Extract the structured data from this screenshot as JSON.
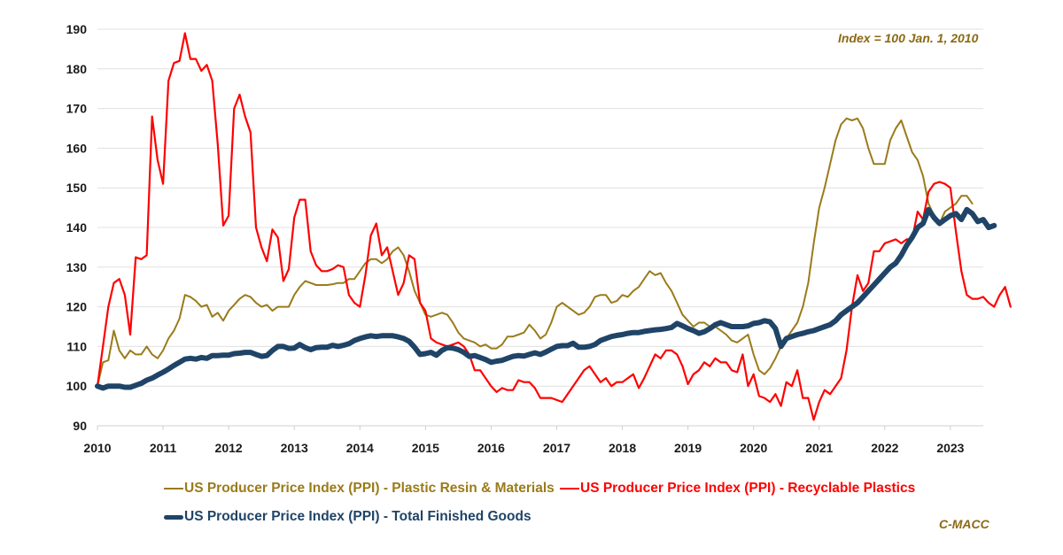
{
  "chart_data": {
    "type": "line",
    "title": "",
    "xlabel": "",
    "ylabel": "",
    "annotation": "Index = 100 Jan. 1, 2010",
    "source": "C-MACC",
    "ylim": [
      90,
      190
    ],
    "yticks": [
      90,
      100,
      110,
      120,
      130,
      140,
      150,
      160,
      170,
      180,
      190
    ],
    "xlim": [
      2010,
      2023.5
    ],
    "xticks": [
      "2010",
      "2011",
      "2012",
      "2013",
      "2014",
      "2015",
      "2016",
      "2017",
      "2018",
      "2019",
      "2020",
      "2021",
      "2022",
      "2023"
    ],
    "grid": true,
    "legend_position": "bottom",
    "x_start": "2010-01",
    "x_step": "monthly",
    "series": [
      {
        "name": "US Producer Price Index (PPI) - Plastic Resin & Materials",
        "color": "#9a7b1a",
        "style": "thin",
        "values": [
          100,
          106,
          106.5,
          114,
          109,
          107,
          109,
          108,
          108,
          110,
          108,
          107,
          109,
          112,
          114,
          117,
          123,
          122.5,
          121.5,
          120,
          120.5,
          117.5,
          118.5,
          116.5,
          119,
          120.5,
          122,
          123,
          122.5,
          121,
          120,
          120.5,
          119,
          120,
          120,
          120,
          123,
          125,
          126.5,
          126,
          125.5,
          125.5,
          125.5,
          125.7,
          126,
          126,
          127,
          127,
          129,
          131,
          132,
          132,
          131,
          132,
          134,
          135,
          133,
          129,
          124,
          121,
          118,
          117.5,
          118,
          118.5,
          118,
          116,
          113.5,
          112,
          111.5,
          111,
          110,
          110.5,
          109.5,
          109.5,
          110.5,
          112.5,
          112.5,
          113,
          113.5,
          115.5,
          114,
          112,
          113,
          116,
          120,
          121,
          120,
          119,
          118,
          118.5,
          120,
          122.5,
          123,
          123,
          121,
          121.5,
          123,
          122.5,
          124,
          125,
          127,
          129,
          128,
          128.5,
          126,
          124,
          121,
          118,
          116.5,
          115,
          116,
          116,
          115,
          115,
          114,
          113,
          111.5,
          111,
          112,
          113,
          108,
          104,
          103,
          104.5,
          107,
          110,
          112,
          114,
          116,
          120,
          126,
          136,
          145,
          150,
          156,
          162,
          166,
          167.5,
          167,
          167.5,
          165,
          160,
          156,
          156,
          156,
          162,
          165,
          167,
          163,
          159,
          157,
          153,
          146,
          143,
          141,
          144,
          145,
          146,
          148,
          148,
          146
        ]
      },
      {
        "name": "US Producer Price Index (PPI) - Recyclable Plastics",
        "color": "#ff0000",
        "style": "medium",
        "values": [
          100,
          110,
          120,
          126,
          127,
          123,
          113,
          132.5,
          132,
          133,
          168,
          157,
          151,
          177,
          181.5,
          182,
          189,
          182.5,
          182.5,
          179.5,
          181,
          177,
          161,
          140.5,
          143,
          170,
          173.5,
          168,
          164,
          140,
          135,
          131.5,
          139.5,
          137.5,
          126.5,
          129.5,
          142.5,
          147,
          147,
          134,
          130.5,
          129,
          129,
          129.5,
          130.5,
          130,
          123,
          121,
          120,
          128,
          138,
          141,
          133,
          135,
          129,
          123,
          126,
          133,
          132,
          121,
          119,
          112,
          111,
          110.5,
          110,
          110.5,
          111,
          110,
          108,
          104,
          104,
          102,
          100,
          98.5,
          99.5,
          99,
          99,
          101.5,
          101,
          101,
          99.5,
          97,
          97,
          97,
          96.5,
          96,
          98,
          100,
          102,
          104,
          105,
          103,
          101,
          102,
          100,
          101,
          101,
          102,
          103,
          99.5,
          102,
          105,
          108,
          107,
          109,
          109,
          108,
          105,
          100.5,
          103,
          104,
          106,
          105,
          107,
          106,
          106,
          104,
          103.5,
          108,
          100,
          103,
          97.5,
          97,
          96,
          98,
          95,
          101,
          100,
          104,
          97,
          97,
          91.5,
          96,
          99,
          98,
          100,
          102,
          109,
          120,
          128,
          124,
          126,
          134,
          134,
          136,
          136.5,
          137,
          136,
          137,
          137,
          144,
          142,
          149,
          151,
          151.5,
          151,
          150,
          139,
          129,
          123,
          122,
          122,
          122.5,
          121,
          120,
          123,
          125,
          120
        ]
      },
      {
        "name": "US Producer Price Index (PPI) - Total Finished Goods",
        "color": "#1f4467",
        "style": "thick",
        "values": [
          100,
          99.5,
          100,
          100,
          100,
          99.7,
          99.7,
          100.2,
          100.7,
          101.5,
          102,
          102.8,
          103.5,
          104.3,
          105.2,
          106,
          106.8,
          107,
          106.8,
          107.2,
          107,
          107.7,
          107.7,
          107.8,
          107.8,
          108.2,
          108.3,
          108.5,
          108.5,
          108,
          107.5,
          107.7,
          109,
          110,
          110,
          109.5,
          109.6,
          110.5,
          109.7,
          109.2,
          109.7,
          109.8,
          109.8,
          110.3,
          110,
          110.3,
          110.7,
          111.5,
          112,
          112.4,
          112.7,
          112.5,
          112.7,
          112.7,
          112.7,
          112.4,
          112,
          111.3,
          109.8,
          108,
          108.2,
          108.5,
          107.8,
          109,
          109.7,
          109.6,
          109.2,
          108.5,
          107.5,
          107.7,
          107.2,
          106.7,
          106,
          106.3,
          106.5,
          107,
          107.5,
          107.7,
          107.6,
          108,
          108.4,
          108,
          108.6,
          109.3,
          110,
          110.2,
          110.2,
          110.8,
          109.8,
          109.8,
          110,
          110.5,
          111.5,
          112,
          112.5,
          112.8,
          113,
          113.3,
          113.5,
          113.5,
          113.8,
          114,
          114.2,
          114.3,
          114.5,
          114.8,
          115.8,
          115.2,
          114.5,
          114,
          113.3,
          113.7,
          114.5,
          115.5,
          116,
          115.5,
          115,
          115,
          115,
          115.2,
          115.8,
          116,
          116.5,
          116.2,
          114.5,
          110,
          112,
          112.5,
          113,
          113.3,
          113.7,
          114,
          114.5,
          115,
          115.5,
          116.5,
          118,
          119,
          120,
          121,
          122.5,
          124,
          125.5,
          127,
          128.5,
          130,
          131,
          133,
          135.5,
          137.5,
          140,
          141,
          144.5,
          142.5,
          141,
          142,
          143,
          143.5,
          142,
          144.5,
          143.5,
          141.5,
          142,
          140,
          140.5
        ]
      }
    ]
  },
  "legend": {
    "items": [
      {
        "label": "US Producer Price Index (PPI) - Plastic Resin & Materials",
        "color": "#9a7b1a"
      },
      {
        "label": "US Producer Price Index (PPI) - Recyclable Plastics",
        "color": "#ff0000"
      },
      {
        "label": "US Producer Price Index (PPI) - Total Finished Goods",
        "color": "#1f4467"
      }
    ]
  }
}
